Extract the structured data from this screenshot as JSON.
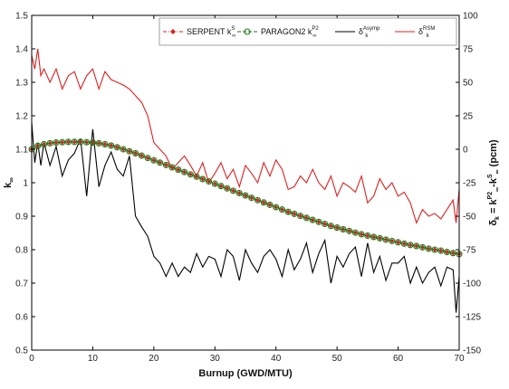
{
  "chart_data": {
    "type": "line",
    "xlabel": "Burnup (GWD/MTU)",
    "ylabel_left": "k∞",
    "ylabel_right": "δk = kP2∞-kS∞ (pcm)",
    "xlim": [
      0,
      70
    ],
    "ylim_left": [
      0.5,
      1.5
    ],
    "ylim_right": [
      -150,
      100
    ],
    "x_ticks": [
      "0",
      "10",
      "20",
      "30",
      "40",
      "50",
      "60",
      "70"
    ],
    "y_left_ticks": [
      "0.5",
      "0.6",
      "0.7",
      "0.8",
      "0.9",
      "1",
      "1.1",
      "1.2",
      "1.3",
      "1.4",
      "1.5"
    ],
    "y_right_ticks": [
      "-150",
      "-125",
      "-100",
      "-75",
      "-50",
      "-25",
      "0",
      "25",
      "50",
      "75",
      "100"
    ],
    "legend": {
      "position": "top-right",
      "entries": [
        {
          "main": "SERPENT k",
          "sub": "∞",
          "sup": "S",
          "color": "#e02020",
          "style": "dashdot-diamond"
        },
        {
          "main": "PARAGON2 k",
          "sub": "∞",
          "sup": "P2",
          "color": "#1a7a1a",
          "style": "dash-circle"
        },
        {
          "main": "δ",
          "sub": "k",
          "sup": "Asymp",
          "color": "#000000",
          "style": "solid"
        },
        {
          "main": "δ",
          "sub": "k",
          "sup": "RSM",
          "color": "#e02020",
          "style": "solid"
        }
      ]
    },
    "series": [
      {
        "name": "SERPENT kS∞",
        "axis": "left",
        "color": "#e02020",
        "x": [
          0,
          1,
          2,
          3,
          4,
          5,
          6,
          7,
          8,
          9,
          10,
          11,
          12,
          13,
          14,
          15,
          16,
          17,
          18,
          19,
          20,
          21,
          22,
          23,
          24,
          25,
          26,
          27,
          28,
          29,
          30,
          31,
          32,
          33,
          34,
          35,
          36,
          37,
          38,
          39,
          40,
          41,
          42,
          43,
          44,
          45,
          46,
          47,
          48,
          49,
          50,
          51,
          52,
          53,
          54,
          55,
          56,
          57,
          58,
          59,
          60,
          61,
          62,
          63,
          64,
          65,
          66,
          67,
          68,
          69,
          70
        ],
        "values": [
          1.1,
          1.11,
          1.115,
          1.118,
          1.12,
          1.121,
          1.122,
          1.122,
          1.122,
          1.121,
          1.12,
          1.118,
          1.115,
          1.111,
          1.106,
          1.1,
          1.094,
          1.088,
          1.081,
          1.074,
          1.067,
          1.06,
          1.053,
          1.046,
          1.039,
          1.032,
          1.025,
          1.018,
          1.011,
          1.004,
          0.997,
          0.99,
          0.983,
          0.976,
          0.969,
          0.962,
          0.955,
          0.948,
          0.941,
          0.934,
          0.927,
          0.92,
          0.913,
          0.907,
          0.901,
          0.895,
          0.889,
          0.883,
          0.877,
          0.871,
          0.866,
          0.861,
          0.856,
          0.851,
          0.846,
          0.842,
          0.838,
          0.834,
          0.83,
          0.826,
          0.822,
          0.818,
          0.814,
          0.811,
          0.807,
          0.803,
          0.8,
          0.797,
          0.793,
          0.79,
          0.787
        ]
      },
      {
        "name": "PARAGON2 kP2∞",
        "axis": "left",
        "color": "#1a7a1a",
        "x": [
          0,
          1,
          2,
          3,
          4,
          5,
          6,
          7,
          8,
          9,
          10,
          11,
          12,
          13,
          14,
          15,
          16,
          17,
          18,
          19,
          20,
          21,
          22,
          23,
          24,
          25,
          26,
          27,
          28,
          29,
          30,
          31,
          32,
          33,
          34,
          35,
          36,
          37,
          38,
          39,
          40,
          41,
          42,
          43,
          44,
          45,
          46,
          47,
          48,
          49,
          50,
          51,
          52,
          53,
          54,
          55,
          56,
          57,
          58,
          59,
          60,
          61,
          62,
          63,
          64,
          65,
          66,
          67,
          68,
          69,
          70
        ],
        "values": [
          1.1,
          1.11,
          1.115,
          1.118,
          1.12,
          1.121,
          1.122,
          1.122,
          1.122,
          1.121,
          1.12,
          1.118,
          1.115,
          1.111,
          1.106,
          1.1,
          1.094,
          1.088,
          1.081,
          1.074,
          1.067,
          1.06,
          1.053,
          1.046,
          1.039,
          1.032,
          1.025,
          1.018,
          1.011,
          1.004,
          0.997,
          0.99,
          0.983,
          0.976,
          0.969,
          0.962,
          0.955,
          0.948,
          0.941,
          0.934,
          0.927,
          0.92,
          0.913,
          0.907,
          0.901,
          0.895,
          0.889,
          0.883,
          0.877,
          0.871,
          0.866,
          0.861,
          0.856,
          0.851,
          0.846,
          0.842,
          0.838,
          0.834,
          0.83,
          0.826,
          0.822,
          0.818,
          0.814,
          0.811,
          0.807,
          0.803,
          0.8,
          0.797,
          0.793,
          0.79,
          0.787
        ]
      },
      {
        "name": "δk Asymp",
        "axis": "right",
        "color": "#000000",
        "x": [
          0,
          0.5,
          1,
          1.5,
          2,
          3,
          4,
          5,
          6,
          7,
          8,
          9,
          10,
          11,
          12,
          13,
          14,
          15,
          16,
          17,
          18,
          19,
          20,
          21,
          22,
          23,
          24,
          25,
          26,
          27,
          28,
          29,
          30,
          31,
          32,
          33,
          34,
          35,
          36,
          37,
          38,
          39,
          40,
          41,
          42,
          43,
          44,
          45,
          46,
          47,
          48,
          49,
          50,
          51,
          52,
          53,
          54,
          55,
          56,
          57,
          58,
          59,
          60,
          61,
          62,
          63,
          64,
          65,
          66,
          67,
          68,
          69,
          69.5,
          70
        ],
        "values": [
          20,
          -10,
          5,
          -12,
          5,
          -12,
          2,
          -20,
          -8,
          -3,
          8,
          -35,
          15,
          -28,
          -12,
          -2,
          -15,
          -20,
          -5,
          -50,
          -58,
          -65,
          -80,
          -85,
          -95,
          -85,
          -95,
          -88,
          -92,
          -78,
          -88,
          -80,
          -82,
          -95,
          -75,
          -80,
          -98,
          -75,
          -85,
          -92,
          -80,
          -75,
          -82,
          -95,
          -75,
          -90,
          -82,
          -70,
          -92,
          -78,
          -68,
          -100,
          -80,
          -88,
          -78,
          -73,
          -95,
          -70,
          -92,
          -80,
          -98,
          -85,
          -85,
          -80,
          -100,
          -88,
          -100,
          -92,
          -88,
          -102,
          -88,
          -90,
          -122,
          -95
        ]
      },
      {
        "name": "δk RSM",
        "axis": "right",
        "color": "#e02020",
        "x": [
          0,
          0.5,
          1,
          1.5,
          2,
          3,
          4,
          5,
          6,
          7,
          8,
          9,
          10,
          11,
          12,
          13,
          14,
          15,
          16,
          17,
          18,
          19,
          20,
          21,
          22,
          23,
          24,
          25,
          26,
          27,
          28,
          29,
          30,
          31,
          32,
          33,
          34,
          35,
          36,
          37,
          38,
          39,
          40,
          41,
          42,
          43,
          44,
          45,
          46,
          47,
          48,
          49,
          50,
          51,
          52,
          53,
          54,
          55,
          56,
          57,
          58,
          59,
          60,
          61,
          62,
          63,
          64,
          65,
          66,
          67,
          68,
          69,
          69.5,
          70
        ],
        "values": [
          70,
          60,
          75,
          55,
          60,
          50,
          60,
          45,
          55,
          58,
          45,
          55,
          60,
          45,
          58,
          52,
          50,
          48,
          45,
          40,
          35,
          25,
          5,
          0,
          -5,
          -15,
          -10,
          -5,
          -12,
          -20,
          -10,
          -25,
          -18,
          -10,
          -22,
          -15,
          -28,
          -12,
          -18,
          -25,
          -10,
          -20,
          -8,
          -15,
          -30,
          -28,
          -20,
          -25,
          -15,
          -25,
          -30,
          -20,
          -35,
          -25,
          -28,
          -32,
          -20,
          -40,
          -35,
          -22,
          -30,
          -25,
          -35,
          -32,
          -40,
          -55,
          -45,
          -50,
          -48,
          -52,
          -45,
          -38,
          -55,
          -30
        ]
      }
    ]
  }
}
